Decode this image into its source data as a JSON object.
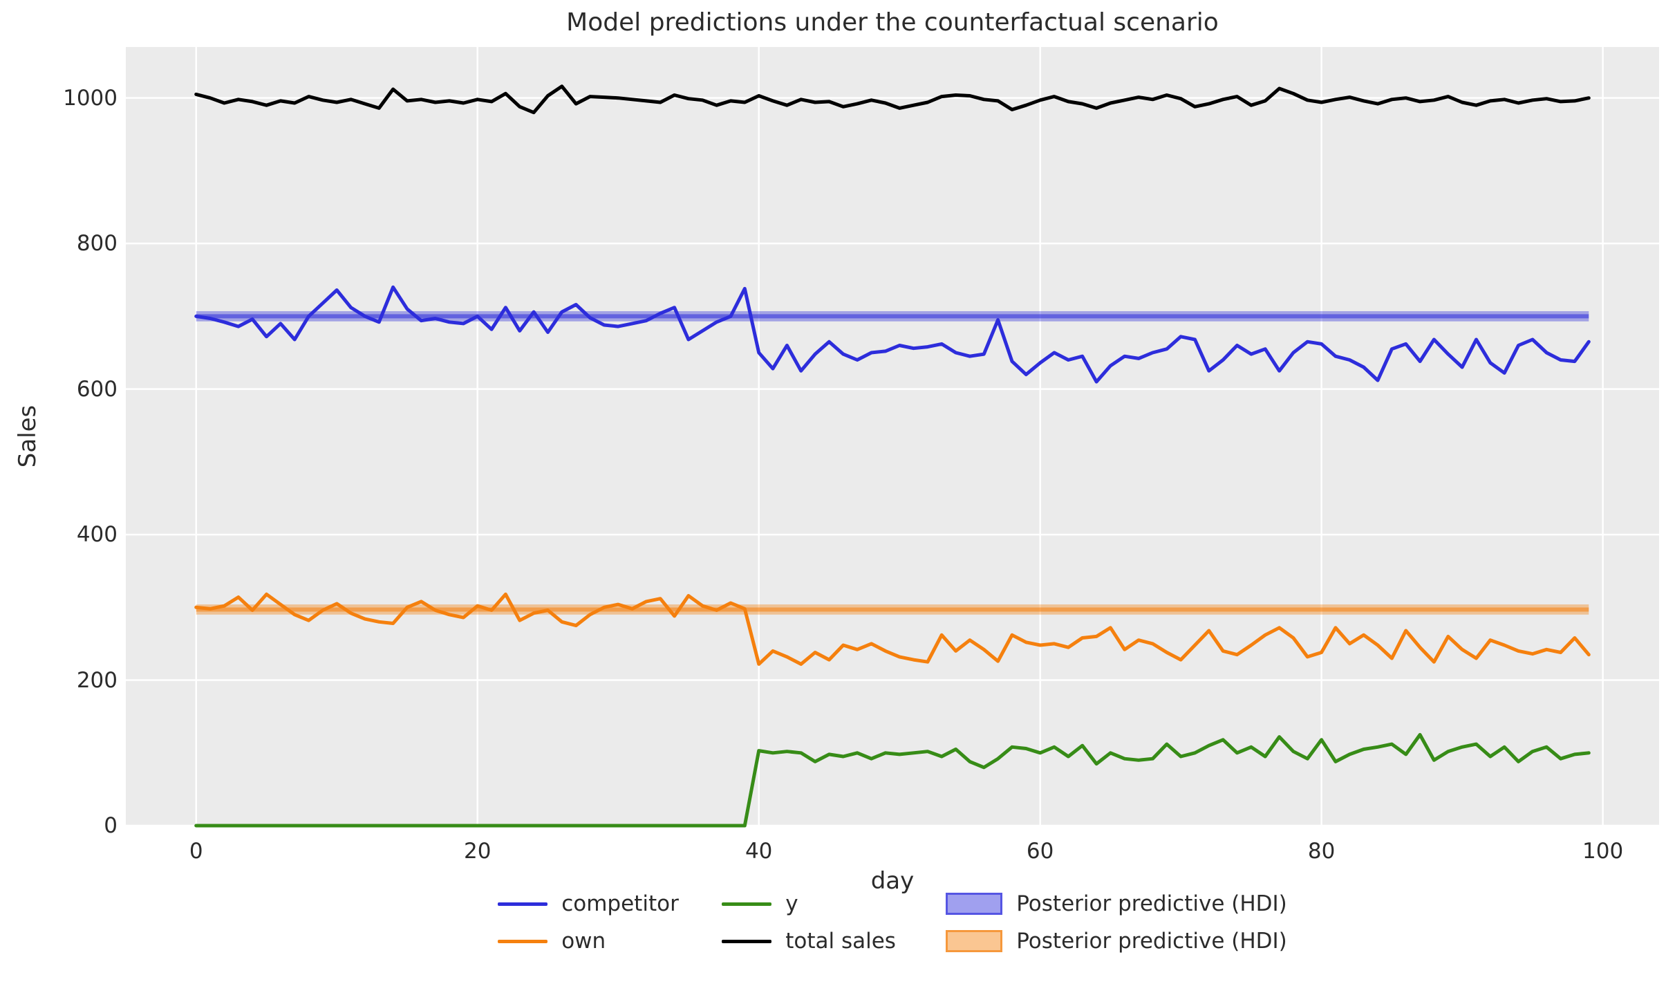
{
  "chart_data": {
    "type": "line",
    "title": "Model predictions under the counterfactual scenario",
    "xlabel": "day",
    "ylabel": "Sales",
    "x_ticks": [
      0,
      20,
      40,
      60,
      80,
      100
    ],
    "y_ticks": [
      0,
      200,
      400,
      600,
      800,
      1000
    ],
    "xlim": [
      -5,
      104
    ],
    "ylim": [
      0,
      1070
    ],
    "grid": true,
    "legend_position": "below-axes, 3 columns",
    "background_color": "#ebebeb",
    "grid_color": "#ffffff",
    "text_color": "#2b2b2b",
    "x_days": {
      "start": 0,
      "end": 99,
      "step": 1
    },
    "series": [
      {
        "name": "competitor",
        "color": "#2d2ddb",
        "values": [
          700,
          697,
          692,
          686,
          696,
          672,
          690,
          668,
          700,
          718,
          736,
          712,
          700,
          692,
          740,
          710,
          694,
          697,
          692,
          690,
          700,
          682,
          712,
          680,
          706,
          678,
          706,
          716,
          698,
          688,
          686,
          690,
          694,
          704,
          712,
          668,
          680,
          692,
          700,
          738,
          650,
          628,
          660,
          625,
          648,
          665,
          648,
          640,
          650,
          652,
          660,
          656,
          658,
          662,
          650,
          645,
          648,
          695,
          638,
          620,
          636,
          650,
          640,
          645,
          610,
          632,
          645,
          642,
          650,
          655,
          672,
          668,
          625,
          640,
          660,
          648,
          655,
          625,
          650,
          665,
          662,
          645,
          640,
          630,
          612,
          655,
          662,
          638,
          668,
          648,
          630,
          668,
          636,
          622,
          660,
          668,
          650,
          640,
          638,
          665
        ]
      },
      {
        "name": "own",
        "color": "#f5800e",
        "values": [
          300,
          298,
          302,
          314,
          296,
          318,
          304,
          290,
          282,
          296,
          305,
          292,
          284,
          280,
          278,
          300,
          308,
          296,
          290,
          286,
          302,
          296,
          318,
          282,
          292,
          296,
          280,
          275,
          290,
          300,
          304,
          298,
          308,
          312,
          288,
          316,
          302,
          296,
          306,
          298,
          222,
          240,
          232,
          222,
          238,
          228,
          248,
          242,
          250,
          240,
          232,
          228,
          225,
          262,
          240,
          255,
          242,
          226,
          262,
          252,
          248,
          250,
          245,
          258,
          260,
          272,
          242,
          255,
          250,
          238,
          228,
          248,
          268,
          240,
          235,
          248,
          262,
          272,
          258,
          232,
          238,
          272,
          250,
          262,
          248,
          230,
          268,
          245,
          225,
          260,
          242,
          230,
          255,
          248,
          240,
          236,
          242,
          238,
          258,
          235
        ]
      },
      {
        "name": "y",
        "color": "#378c17",
        "values": [
          0,
          0,
          0,
          0,
          0,
          0,
          0,
          0,
          0,
          0,
          0,
          0,
          0,
          0,
          0,
          0,
          0,
          0,
          0,
          0,
          0,
          0,
          0,
          0,
          0,
          0,
          0,
          0,
          0,
          0,
          0,
          0,
          0,
          0,
          0,
          0,
          0,
          0,
          0,
          0,
          103,
          100,
          102,
          100,
          88,
          98,
          95,
          100,
          92,
          100,
          98,
          100,
          102,
          95,
          105,
          88,
          80,
          92,
          108,
          106,
          100,
          108,
          95,
          110,
          85,
          100,
          92,
          90,
          92,
          112,
          95,
          100,
          110,
          118,
          100,
          108,
          95,
          122,
          102,
          92,
          118,
          88,
          98,
          105,
          108,
          112,
          98,
          125,
          90,
          102,
          108,
          112,
          95,
          108,
          88,
          102,
          108,
          92,
          98,
          100
        ]
      },
      {
        "name": "total sales",
        "color": "#000000",
        "values": [
          1005,
          1000,
          993,
          998,
          995,
          990,
          996,
          993,
          1002,
          997,
          994,
          998,
          992,
          986,
          1012,
          996,
          998,
          994,
          996,
          993,
          998,
          995,
          1006,
          988,
          980,
          1003,
          1016,
          992,
          1002,
          1001,
          1000,
          998,
          996,
          994,
          1004,
          999,
          997,
          990,
          996,
          994,
          1003,
          996,
          990,
          998,
          994,
          995,
          988,
          992,
          997,
          993,
          986,
          990,
          994,
          1002,
          1004,
          1003,
          998,
          996,
          984,
          990,
          997,
          1002,
          995,
          992,
          986,
          993,
          997,
          1001,
          998,
          1004,
          999,
          988,
          992,
          998,
          1002,
          990,
          996,
          1013,
          1006,
          997,
          994,
          998,
          1001,
          996,
          992,
          998,
          1000,
          995,
          997,
          1002,
          994,
          990,
          996,
          998,
          993,
          997,
          999,
          995,
          996,
          1000
        ]
      }
    ],
    "hdi_bands": [
      {
        "name": "Posterior predictive (HDI)",
        "color": "#2d2ddb",
        "lower": 693,
        "upper": 707,
        "center": 700,
        "x_start": 0,
        "x_end": 99
      },
      {
        "name": "Posterior predictive (HDI)",
        "color": "#f5800e",
        "lower": 290,
        "upper": 304,
        "center": 297,
        "x_start": 0,
        "x_end": 99
      }
    ],
    "legend": [
      {
        "label": "competitor",
        "type": "line",
        "color": "#2d2ddb"
      },
      {
        "label": "own",
        "type": "line",
        "color": "#f5800e"
      },
      {
        "label": "y",
        "type": "line",
        "color": "#378c17"
      },
      {
        "label": "total sales",
        "type": "line",
        "color": "#000000"
      },
      {
        "label": "Posterior predictive (HDI)",
        "type": "patch",
        "color": "#2d2ddb"
      },
      {
        "label": "Posterior predictive (HDI)",
        "type": "patch",
        "color": "#f5800e"
      }
    ]
  }
}
